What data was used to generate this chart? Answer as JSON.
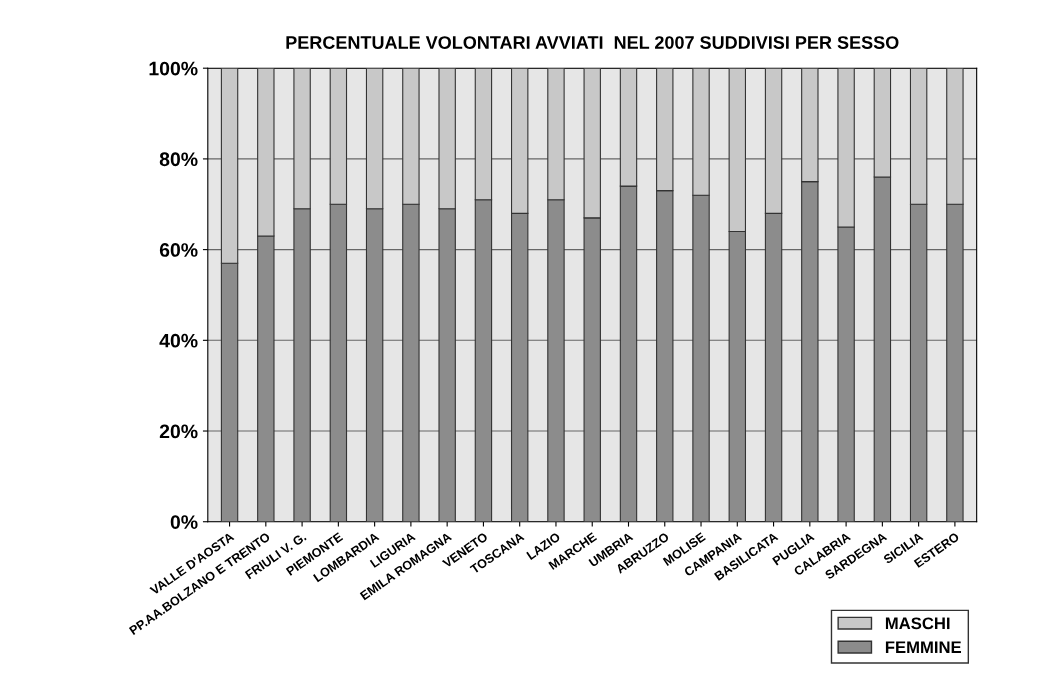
{
  "chart_data": {
    "type": "bar",
    "title": "PERCENTUALE VOLONTARI AVVIATI  NEL 2007 SUDDIVISI PER SESSO",
    "categories": [
      "VALLE D'AOSTA",
      "PP.AA.BOLZANO E TRENTO",
      "FRIULI V. G.",
      "PIEMONTE",
      "LOMBARDIA",
      "LIGURIA",
      "EMILA ROMAGNA",
      "VENETO",
      "TOSCANA",
      "LAZIO",
      "MARCHE",
      "UMBRIA",
      "ABRUZZO",
      "MOLISE",
      "CAMPANIA",
      "BASILICATA",
      "PUGLIA",
      "CALABRIA",
      "SARDEGNA",
      "SICILIA",
      "ESTERO"
    ],
    "stacked": true,
    "series": [
      {
        "name": "FEMMINE",
        "color": "#8c8c8c",
        "values": [
          57,
          63,
          69,
          70,
          69,
          70,
          69,
          71,
          68,
          71,
          67,
          74,
          73,
          72,
          64,
          68,
          75,
          65,
          76,
          70,
          70
        ]
      },
      {
        "name": "MASCHI",
        "color": "#c8c8c8",
        "values": [
          43,
          37,
          31,
          30,
          31,
          30,
          31,
          29,
          32,
          29,
          33,
          26,
          27,
          28,
          36,
          32,
          25,
          35,
          24,
          30,
          30
        ]
      }
    ],
    "ylim": [
      0,
      100
    ],
    "yticks": [
      {
        "value": 0,
        "label": "0%"
      },
      {
        "value": 20,
        "label": "20%"
      },
      {
        "value": 40,
        "label": "40%"
      },
      {
        "value": 60,
        "label": "60%"
      },
      {
        "value": 80,
        "label": "80%"
      },
      {
        "value": 100,
        "label": "100%"
      }
    ],
    "grid": "y",
    "legend": "bottom right"
  }
}
